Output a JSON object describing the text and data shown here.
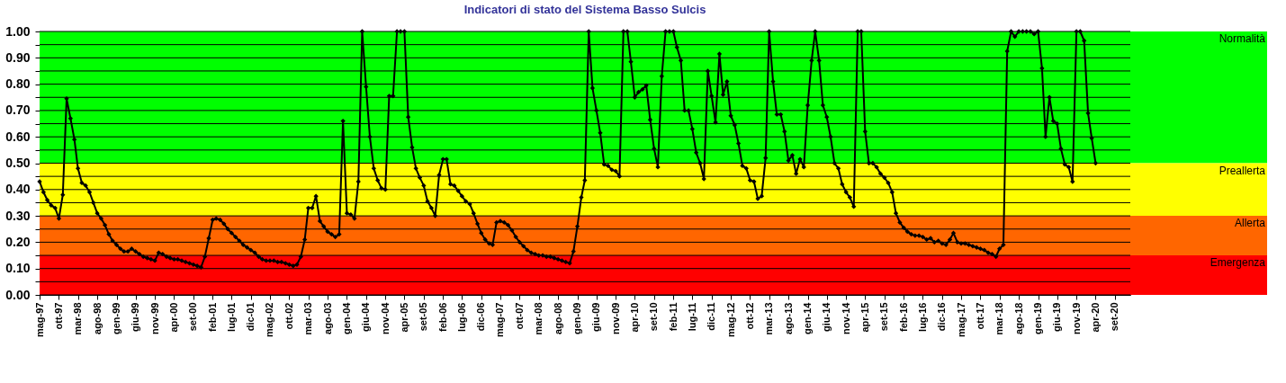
{
  "chart_data": {
    "type": "line",
    "title": "Indicatori di stato del Sistema Basso Sulcis",
    "x": [
      "1997-05",
      "1997-06",
      "1997-07",
      "1997-08",
      "1997-09",
      "1997-10",
      "1997-11",
      "1997-12",
      "1998-01",
      "1998-02",
      "1998-03",
      "1998-04",
      "1998-05",
      "1998-06",
      "1998-07",
      "1998-08",
      "1998-09",
      "1998-10",
      "1998-11",
      "1998-12",
      "1999-01",
      "1999-02",
      "1999-03",
      "1999-04",
      "1999-05",
      "1999-06",
      "1999-07",
      "1999-08",
      "1999-09",
      "1999-10",
      "1999-11",
      "1999-12",
      "2000-01",
      "2000-02",
      "2000-03",
      "2000-04",
      "2000-05",
      "2000-06",
      "2000-07",
      "2000-08",
      "2000-09",
      "2000-10",
      "2000-11",
      "2000-12",
      "2001-01",
      "2001-02",
      "2001-03",
      "2001-04",
      "2001-05",
      "2001-06",
      "2001-07",
      "2001-08",
      "2001-09",
      "2001-10",
      "2001-11",
      "2001-12",
      "2002-01",
      "2002-02",
      "2002-03",
      "2002-04",
      "2002-05",
      "2002-06",
      "2002-07",
      "2002-08",
      "2002-09",
      "2002-10",
      "2002-11",
      "2002-12",
      "2003-01",
      "2003-02",
      "2003-03",
      "2003-04",
      "2003-05",
      "2003-06",
      "2003-07",
      "2003-08",
      "2003-09",
      "2003-10",
      "2003-11",
      "2003-12",
      "2004-01",
      "2004-02",
      "2004-03",
      "2004-04",
      "2004-05",
      "2004-06",
      "2004-07",
      "2004-08",
      "2004-09",
      "2004-10",
      "2004-11",
      "2004-12",
      "2005-01",
      "2005-02",
      "2005-03",
      "2005-04",
      "2005-05",
      "2005-06",
      "2005-07",
      "2005-08",
      "2005-09",
      "2005-10",
      "2005-11",
      "2005-12",
      "2006-01",
      "2006-02",
      "2006-03",
      "2006-04",
      "2006-05",
      "2006-06",
      "2006-07",
      "2006-08",
      "2006-09",
      "2006-10",
      "2006-11",
      "2006-12",
      "2007-01",
      "2007-02",
      "2007-03",
      "2007-04",
      "2007-05",
      "2007-06",
      "2007-07",
      "2007-08",
      "2007-09",
      "2007-10",
      "2007-11",
      "2007-12",
      "2008-01",
      "2008-02",
      "2008-03",
      "2008-04",
      "2008-05",
      "2008-06",
      "2008-07",
      "2008-08",
      "2008-09",
      "2008-10",
      "2008-11",
      "2008-12",
      "2009-01",
      "2009-02",
      "2009-03",
      "2009-04",
      "2009-05",
      "2009-06",
      "2009-07",
      "2009-08",
      "2009-09",
      "2009-10",
      "2009-11",
      "2009-12",
      "2010-01",
      "2010-02",
      "2010-03",
      "2010-04",
      "2010-05",
      "2010-06",
      "2010-07",
      "2010-08",
      "2010-09",
      "2010-10",
      "2010-11",
      "2010-12",
      "2011-01",
      "2011-02",
      "2011-03",
      "2011-04",
      "2011-05",
      "2011-06",
      "2011-07",
      "2011-08",
      "2011-09",
      "2011-10",
      "2011-11",
      "2011-12",
      "2012-01",
      "2012-02",
      "2012-03",
      "2012-04",
      "2012-05",
      "2012-06",
      "2012-07",
      "2012-08",
      "2012-09",
      "2012-10",
      "2012-11",
      "2012-12",
      "2013-01",
      "2013-02",
      "2013-03",
      "2013-04",
      "2013-05",
      "2013-06",
      "2013-07",
      "2013-08",
      "2013-09",
      "2013-10",
      "2013-11",
      "2013-12",
      "2014-01",
      "2014-02",
      "2014-03",
      "2014-04",
      "2014-05",
      "2014-06",
      "2014-07",
      "2014-08",
      "2014-09",
      "2014-10",
      "2014-11",
      "2014-12",
      "2015-01",
      "2015-02",
      "2015-03",
      "2015-04",
      "2015-05",
      "2015-06",
      "2015-07",
      "2015-08",
      "2015-09",
      "2015-10",
      "2015-11",
      "2015-12",
      "2016-01",
      "2016-02",
      "2016-03",
      "2016-04",
      "2016-05",
      "2016-06",
      "2016-07",
      "2016-08",
      "2016-09",
      "2016-10",
      "2016-11",
      "2016-12",
      "2017-01",
      "2017-02",
      "2017-03",
      "2017-04",
      "2017-05",
      "2017-06",
      "2017-07",
      "2017-08",
      "2017-09",
      "2017-10",
      "2017-11",
      "2017-12",
      "2018-01",
      "2018-02",
      "2018-03",
      "2018-04",
      "2018-05",
      "2018-06",
      "2018-07",
      "2018-08",
      "2018-09",
      "2018-10",
      "2018-11",
      "2018-12",
      "2019-01",
      "2019-02",
      "2019-03",
      "2019-04",
      "2019-05",
      "2019-06",
      "2019-07",
      "2019-08",
      "2019-09",
      "2019-10",
      "2019-11",
      "2019-12",
      "2020-01",
      "2020-02",
      "2020-03",
      "2020-04"
    ],
    "series": [
      {
        "color": "#000000",
        "values": [
          0.43,
          0.39,
          0.36,
          0.34,
          0.33,
          0.29,
          0.38,
          0.745,
          0.67,
          0.59,
          0.48,
          0.425,
          0.415,
          0.39,
          0.35,
          0.31,
          0.29,
          0.265,
          0.23,
          0.205,
          0.19,
          0.175,
          0.165,
          0.165,
          0.175,
          0.165,
          0.155,
          0.145,
          0.14,
          0.135,
          0.13,
          0.16,
          0.155,
          0.145,
          0.14,
          0.135,
          0.135,
          0.13,
          0.125,
          0.12,
          0.115,
          0.11,
          0.105,
          0.145,
          0.215,
          0.285,
          0.29,
          0.285,
          0.27,
          0.25,
          0.235,
          0.22,
          0.205,
          0.19,
          0.18,
          0.17,
          0.16,
          0.145,
          0.135,
          0.13,
          0.13,
          0.13,
          0.125,
          0.125,
          0.12,
          0.115,
          0.11,
          0.115,
          0.145,
          0.21,
          0.33,
          0.33,
          0.375,
          0.28,
          0.26,
          0.24,
          0.23,
          0.22,
          0.23,
          0.66,
          0.31,
          0.305,
          0.29,
          0.43,
          1.0,
          0.79,
          0.6,
          0.48,
          0.435,
          0.405,
          0.4,
          0.755,
          0.755,
          1.0,
          1.0,
          1.0,
          0.675,
          0.56,
          0.48,
          0.445,
          0.415,
          0.355,
          0.33,
          0.3,
          0.455,
          0.515,
          0.515,
          0.42,
          0.415,
          0.395,
          0.375,
          0.355,
          0.345,
          0.31,
          0.27,
          0.235,
          0.21,
          0.195,
          0.19,
          0.275,
          0.28,
          0.275,
          0.265,
          0.245,
          0.22,
          0.2,
          0.185,
          0.17,
          0.16,
          0.155,
          0.15,
          0.15,
          0.145,
          0.145,
          0.14,
          0.135,
          0.13,
          0.125,
          0.12,
          0.165,
          0.26,
          0.37,
          0.435,
          1.0,
          0.785,
          0.7,
          0.615,
          0.495,
          0.49,
          0.475,
          0.47,
          0.45,
          1.0,
          1.0,
          0.885,
          0.75,
          0.77,
          0.78,
          0.795,
          0.665,
          0.555,
          0.485,
          0.83,
          1.0,
          1.0,
          1.0,
          0.94,
          0.89,
          0.7,
          0.7,
          0.63,
          0.54,
          0.5,
          0.44,
          0.85,
          0.755,
          0.655,
          0.915,
          0.76,
          0.81,
          0.68,
          0.645,
          0.575,
          0.49,
          0.48,
          0.435,
          0.43,
          0.365,
          0.375,
          0.52,
          1.0,
          0.81,
          0.685,
          0.685,
          0.62,
          0.51,
          0.53,
          0.46,
          0.515,
          0.485,
          0.72,
          0.89,
          1.0,
          0.89,
          0.72,
          0.675,
          0.6,
          0.5,
          0.48,
          0.42,
          0.39,
          0.37,
          0.335,
          1.0,
          1.0,
          0.62,
          0.5,
          0.5,
          0.485,
          0.46,
          0.445,
          0.425,
          0.39,
          0.31,
          0.275,
          0.255,
          0.24,
          0.23,
          0.225,
          0.225,
          0.22,
          0.21,
          0.215,
          0.2,
          0.205,
          0.195,
          0.19,
          0.21,
          0.235,
          0.2,
          0.195,
          0.195,
          0.19,
          0.185,
          0.18,
          0.175,
          0.17,
          0.16,
          0.155,
          0.145,
          0.175,
          0.19,
          0.925,
          1.0,
          0.98,
          1.0,
          1.0,
          1.0,
          1.0,
          0.99,
          1.0,
          0.86,
          0.6,
          0.75,
          0.66,
          0.65,
          0.555,
          0.495,
          0.485,
          0.43,
          1.0,
          1.0,
          0.965,
          0.69,
          0.595,
          0.5
        ]
      }
    ],
    "xlim": [
      "1997-05",
      "2021-01"
    ],
    "xticks": [
      {
        "value": "1997-05",
        "label": "mag-97"
      },
      {
        "value": "1997-10",
        "label": "ott-97"
      },
      {
        "value": "1998-03",
        "label": "mar-98"
      },
      {
        "value": "1998-08",
        "label": "ago-98"
      },
      {
        "value": "1999-01",
        "label": "gen-99"
      },
      {
        "value": "1999-06",
        "label": "giu-99"
      },
      {
        "value": "1999-11",
        "label": "nov-99"
      },
      {
        "value": "2000-04",
        "label": "apr-00"
      },
      {
        "value": "2000-09",
        "label": "set-00"
      },
      {
        "value": "2001-02",
        "label": "feb-01"
      },
      {
        "value": "2001-07",
        "label": "lug-01"
      },
      {
        "value": "2001-12",
        "label": "dic-01"
      },
      {
        "value": "2002-05",
        "label": "mag-02"
      },
      {
        "value": "2002-10",
        "label": "ott-02"
      },
      {
        "value": "2003-03",
        "label": "mar-03"
      },
      {
        "value": "2003-08",
        "label": "ago-03"
      },
      {
        "value": "2004-01",
        "label": "gen-04"
      },
      {
        "value": "2004-06",
        "label": "giu-04"
      },
      {
        "value": "2004-11",
        "label": "nov-04"
      },
      {
        "value": "2005-04",
        "label": "apr-05"
      },
      {
        "value": "2005-09",
        "label": "set-05"
      },
      {
        "value": "2006-02",
        "label": "feb-06"
      },
      {
        "value": "2006-07",
        "label": "lug-06"
      },
      {
        "value": "2006-12",
        "label": "dic-06"
      },
      {
        "value": "2007-05",
        "label": "mag-07"
      },
      {
        "value": "2007-10",
        "label": "ott-07"
      },
      {
        "value": "2008-03",
        "label": "mar-08"
      },
      {
        "value": "2008-08",
        "label": "ago-08"
      },
      {
        "value": "2009-01",
        "label": "gen-09"
      },
      {
        "value": "2009-06",
        "label": "giu-09"
      },
      {
        "value": "2009-11",
        "label": "nov-09"
      },
      {
        "value": "2010-04",
        "label": "apr-10"
      },
      {
        "value": "2010-09",
        "label": "set-10"
      },
      {
        "value": "2011-02",
        "label": "feb-11"
      },
      {
        "value": "2011-07",
        "label": "lug-11"
      },
      {
        "value": "2011-12",
        "label": "dic-11"
      },
      {
        "value": "2012-05",
        "label": "mag-12"
      },
      {
        "value": "2012-10",
        "label": "ott-12"
      },
      {
        "value": "2013-03",
        "label": "mar-13"
      },
      {
        "value": "2013-08",
        "label": "ago-13"
      },
      {
        "value": "2014-01",
        "label": "gen-14"
      },
      {
        "value": "2014-06",
        "label": "giu-14"
      },
      {
        "value": "2014-11",
        "label": "nov-14"
      },
      {
        "value": "2015-04",
        "label": "apr-15"
      },
      {
        "value": "2015-09",
        "label": "set-15"
      },
      {
        "value": "2016-02",
        "label": "feb-16"
      },
      {
        "value": "2016-07",
        "label": "lug-16"
      },
      {
        "value": "2016-12",
        "label": "dic-16"
      },
      {
        "value": "2017-05",
        "label": "mag-17"
      },
      {
        "value": "2017-10",
        "label": "ott-17"
      },
      {
        "value": "2018-03",
        "label": "mar-18"
      },
      {
        "value": "2018-08",
        "label": "ago-18"
      },
      {
        "value": "2019-01",
        "label": "gen-19"
      },
      {
        "value": "2019-06",
        "label": "giu-19"
      },
      {
        "value": "2019-11",
        "label": "nov-19"
      },
      {
        "value": "2020-04",
        "label": "apr-20"
      },
      {
        "value": "2020-09",
        "label": "set-20"
      }
    ],
    "ylim": [
      0,
      1
    ],
    "yticks": [
      {
        "value": 0,
        "label": "0.00"
      },
      {
        "value": 0.05,
        "label": null
      },
      {
        "value": 0.1,
        "label": "0.10"
      },
      {
        "value": 0.15,
        "label": null
      },
      {
        "value": 0.2,
        "label": "0.20"
      },
      {
        "value": 0.25,
        "label": null
      },
      {
        "value": 0.3,
        "label": "0.30"
      },
      {
        "value": 0.35,
        "label": null
      },
      {
        "value": 0.4,
        "label": "0.40"
      },
      {
        "value": 0.45,
        "label": null
      },
      {
        "value": 0.5,
        "label": "0.50"
      },
      {
        "value": 0.55,
        "label": null
      },
      {
        "value": 0.6,
        "label": "0.60"
      },
      {
        "value": 0.65,
        "label": null
      },
      {
        "value": 0.7,
        "label": "0.70"
      },
      {
        "value": 0.75,
        "label": null
      },
      {
        "value": 0.8,
        "label": "0.80"
      },
      {
        "value": 0.85,
        "label": null
      },
      {
        "value": 0.9,
        "label": "0.90"
      },
      {
        "value": 0.95,
        "label": null
      },
      {
        "value": 1,
        "label": "1.00"
      }
    ],
    "bands": [
      {
        "axis": "y",
        "from": 0.5,
        "to": 1.0,
        "label": "Normalità",
        "color": "#00ff00"
      },
      {
        "axis": "y",
        "from": 0.3,
        "to": 0.5,
        "label": "Preallerta",
        "color": "#ffff00"
      },
      {
        "axis": "y",
        "from": 0.15,
        "to": 0.3,
        "label": "Allerta",
        "color": "#ff6600"
      },
      {
        "axis": "y",
        "from": 0.0,
        "to": 0.15,
        "label": "Emergenza",
        "color": "#ff0000"
      }
    ],
    "grid": "y",
    "marker": "diamond",
    "line_style": "solid"
  }
}
